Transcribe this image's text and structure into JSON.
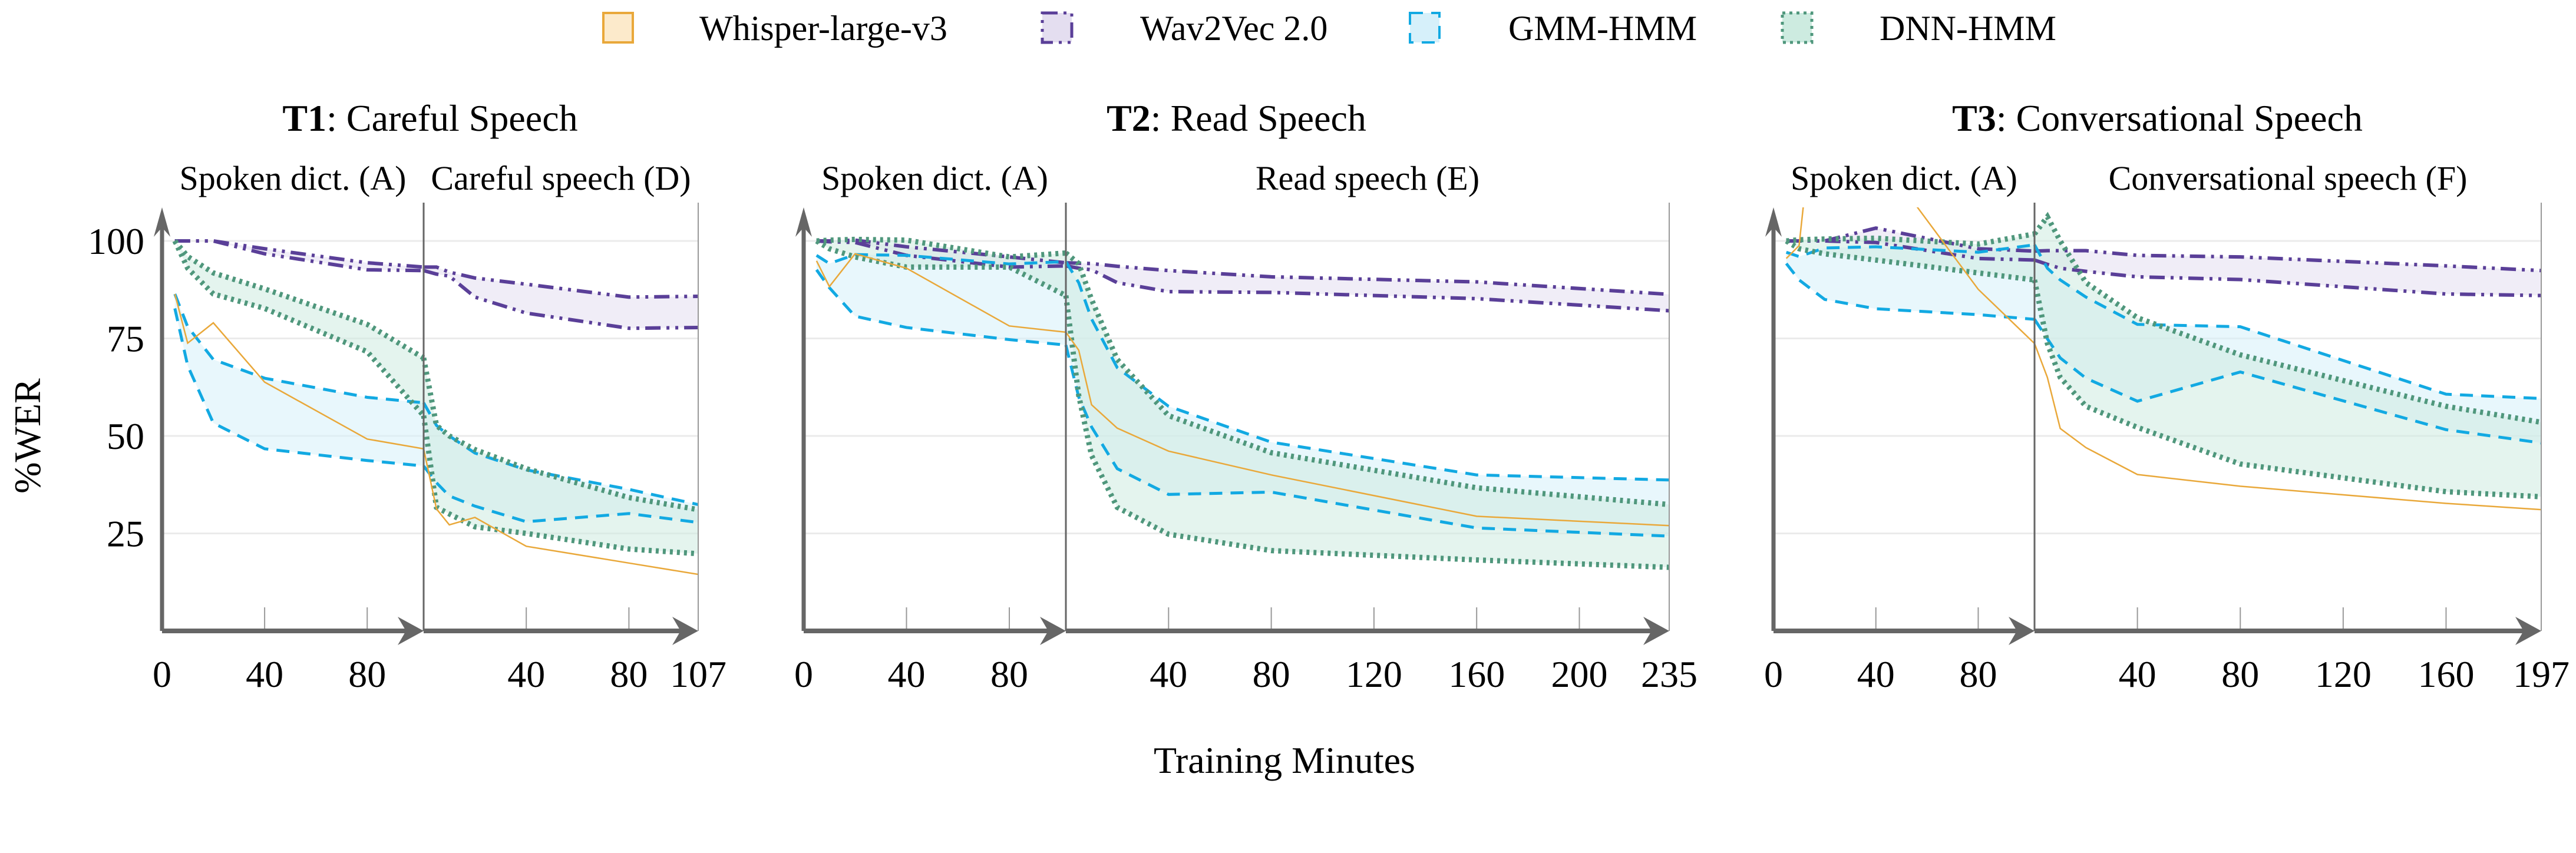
{
  "legend": [
    {
      "key": "whisper",
      "label": "Whisper-large-v3"
    },
    {
      "key": "wav2vec",
      "label": "Wav2Vec 2.0"
    },
    {
      "key": "gmm",
      "label": "GMM-HMM"
    },
    {
      "key": "dnn",
      "label": "DNN-HMM"
    }
  ],
  "colors": {
    "whisper": {
      "line": "#E9A83A",
      "fill": "#FCEACB",
      "style": "solid"
    },
    "wav2vec": {
      "line": "#5A3F98",
      "fill": "#E4DEF0",
      "style": "dash-dot-dot"
    },
    "gmm": {
      "line": "#12A9E2",
      "fill": "#D6F0FA",
      "style": "dashed"
    },
    "dnn": {
      "line": "#4F977C",
      "fill": "#CDEBE0",
      "style": "dotted"
    },
    "axis": "#666666",
    "grid": "#EBEBEB"
  },
  "ylabel": "%WER",
  "xlabel": "Training Minutes",
  "chart_data": [
    {
      "type": "area",
      "title_id": "T1",
      "title": ": Careful Speech",
      "yticks": [
        25,
        50,
        75,
        100
      ],
      "ylim": [
        0,
        108.6
      ],
      "grid": true,
      "phases": [
        {
          "label": "Spoken dict. (A)",
          "xlim": [
            0,
            102
          ],
          "xticks": [
            0,
            40,
            80
          ],
          "x": [
            5,
            10,
            20,
            40,
            80,
            102
          ],
          "whisper": [
            86.4,
            73.8,
            79,
            63.8,
            49.2,
            46.7
          ],
          "wav2vec": {
            "upper": [
              100,
              100,
              100,
              98,
              94.4,
              93.3
            ],
            "lower": [
              100,
              100,
              100,
              96.7,
              92.6,
              92.4
            ]
          },
          "gmm": {
            "upper": [
              86.4,
              78,
              69.6,
              64.8,
              59.9,
              58.5
            ],
            "lower": [
              82.7,
              68,
              53.3,
              46.7,
              43.7,
              42.3
            ]
          },
          "dnn": {
            "upper": [
              100,
              96,
              91.8,
              87.7,
              78.6,
              70
            ],
            "lower": [
              100,
              93,
              86.4,
              82.7,
              71.6,
              55.2
            ]
          }
        },
        {
          "label": "Careful speech (D)",
          "xlim": [
            0,
            107
          ],
          "xticks": [
            40,
            80,
            107
          ],
          "x": [
            0,
            5,
            10,
            20,
            40,
            80,
            107
          ],
          "whisper": [
            46.7,
            31.3,
            27.2,
            29.1,
            21.7,
            17.4,
            14.5
          ],
          "wav2vec": {
            "upper": [
              93.3,
              93.3,
              92,
              90.5,
              88.9,
              85.6,
              85.8
            ],
            "lower": [
              92.4,
              91.5,
              91,
              85.6,
              81.5,
              77.6,
              77.8
            ]
          },
          "gmm": {
            "upper": [
              58.5,
              52.7,
              50,
              45.6,
              41.3,
              36.3,
              32.4
            ],
            "lower": [
              42.3,
              38,
              34.6,
              32,
              28,
              30.1,
              27.8
            ]
          },
          "dnn": {
            "upper": [
              70,
              52.7,
              50,
              46.5,
              41.6,
              34.2,
              31.1
            ],
            "lower": [
              55.2,
              31.7,
              30,
              26.7,
              25,
              21,
              19.8
            ]
          }
        }
      ]
    },
    {
      "type": "area",
      "title_id": "T2",
      "title": ": Read Speech",
      "yticks": [
        25,
        50,
        75,
        100
      ],
      "ylim": [
        0,
        108.6
      ],
      "grid": true,
      "phases": [
        {
          "label": "Spoken dict. (A)",
          "xlim": [
            0,
            102
          ],
          "xticks": [
            0,
            40,
            80
          ],
          "x": [
            5,
            10,
            20,
            40,
            80,
            102
          ],
          "whisper": [
            94.9,
            88.3,
            96.7,
            93,
            78.2,
            76.6
          ],
          "wav2vec": {
            "upper": [
              100,
              100,
              100.2,
              98.5,
              95.9,
              94.4
            ],
            "lower": [
              100,
              99.8,
              99.6,
              96.3,
              93.3,
              93.6
            ]
          },
          "gmm": {
            "upper": [
              96.3,
              94.2,
              96.5,
              96.3,
              94.1,
              94.7
            ],
            "lower": [
              92.6,
              88,
              80.7,
              77.8,
              74.7,
              73.3
            ]
          },
          "dnn": {
            "upper": [
              100,
              100.2,
              100.4,
              100.2,
              95.9,
              96.9
            ],
            "lower": [
              100,
              98,
              95.9,
              93.3,
              93.3,
              86
            ]
          }
        },
        {
          "label": "Read speech (E)",
          "xlim": [
            0,
            235
          ],
          "xticks": [
            40,
            80,
            120,
            160,
            200,
            235
          ],
          "x": [
            0,
            5,
            10,
            20,
            40,
            80,
            160,
            235
          ],
          "whisper": [
            76.6,
            72,
            58,
            52,
            46.1,
            40,
            29.4,
            27
          ],
          "wav2vec": {
            "upper": [
              94.4,
              94.3,
              94.2,
              93.5,
              92.4,
              90.8,
              89.5,
              86.3
            ],
            "lower": [
              93.6,
              93,
              92.6,
              89.3,
              87,
              86.8,
              85.2,
              82.1
            ]
          },
          "gmm": {
            "upper": [
              94.7,
              89.3,
              80,
              67.5,
              57.6,
              48.4,
              40,
              38.7
            ],
            "lower": [
              73.3,
              60,
              52.3,
              41.6,
              35,
              35.6,
              26.4,
              24.3
            ]
          },
          "dnn": {
            "upper": [
              96.9,
              94.2,
              85,
              69.6,
              55.2,
              45.7,
              36.7,
              32.4
            ],
            "lower": [
              86,
              60.4,
              45,
              31.7,
              24.8,
              20.6,
              18.2,
              16.3
            ]
          }
        }
      ]
    },
    {
      "type": "area",
      "title_id": "T3",
      "title": ": Conversational Speech",
      "yticks": [
        25,
        50,
        75,
        100
      ],
      "ylim": [
        0,
        108.6
      ],
      "grid": true,
      "phases": [
        {
          "label": "Spoken dict. (A)",
          "xlim": [
            0,
            102
          ],
          "xticks": [
            0,
            40,
            80
          ],
          "x": [
            5,
            10,
            20,
            40,
            80,
            102
          ],
          "whisper": [
            95.5,
            98.8,
            160,
            123,
            87.6,
            73.7
          ],
          "wav2vec": {
            "upper": [
              100,
              100,
              100,
              103.3,
              98,
              97.4
            ],
            "lower": [
              100,
              100,
              100,
              99.6,
              95.5,
              95.1
            ]
          },
          "gmm": {
            "upper": [
              97.1,
              96,
              98.2,
              98.5,
              97.1,
              99
            ],
            "lower": [
              94.2,
              90,
              85,
              82.6,
              81.1,
              79.9
            ]
          },
          "dnn": {
            "upper": [
              100,
              100.3,
              100.5,
              100.7,
              99.2,
              101.8
            ],
            "lower": [
              100,
              98,
              96.7,
              95.1,
              91.8,
              90
            ]
          }
        },
        {
          "label": "Conversational speech (F)",
          "xlim": [
            0,
            197
          ],
          "xticks": [
            40,
            80,
            120,
            160,
            197
          ],
          "x": [
            0,
            5,
            10,
            20,
            40,
            80,
            160,
            197
          ],
          "whisper": [
            73.7,
            65,
            51.9,
            47,
            40.1,
            37.1,
            32.7,
            31.1
          ],
          "wav2vec": {
            "upper": [
              97.4,
              97.5,
              97.5,
              97.5,
              96.3,
              95.9,
              93.6,
              92.4
            ],
            "lower": [
              95.1,
              94,
              93,
              92.2,
              90.8,
              90.1,
              86.4,
              86
            ]
          },
          "gmm": {
            "upper": [
              99,
              93,
              90,
              85.6,
              78.6,
              78,
              60.7,
              59.6
            ],
            "lower": [
              79.9,
              74.9,
              70,
              64.8,
              58.9,
              66.4,
              51.6,
              48.2
            ]
          },
          "dnn": {
            "upper": [
              101.8,
              106.2,
              100,
              89.3,
              80.3,
              70.8,
              57.6,
              53.5
            ],
            "lower": [
              90,
              73.7,
              65,
              57.6,
              52.2,
              42.8,
              35.7,
              34.4
            ]
          }
        }
      ]
    }
  ]
}
